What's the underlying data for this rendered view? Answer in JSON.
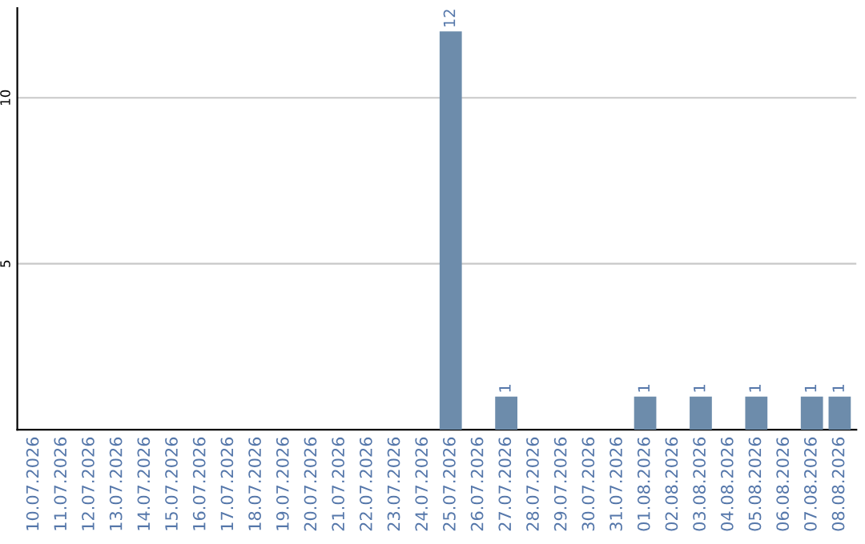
{
  "chart_data": {
    "type": "bar",
    "categories": [
      "10.07.2026",
      "11.07.2026",
      "12.07.2026",
      "13.07.2026",
      "14.07.2026",
      "15.07.2026",
      "16.07.2026",
      "17.07.2026",
      "18.07.2026",
      "19.07.2026",
      "20.07.2026",
      "21.07.2026",
      "22.07.2026",
      "23.07.2026",
      "24.07.2026",
      "25.07.2026",
      "26.07.2026",
      "27.07.2026",
      "28.07.2026",
      "29.07.2026",
      "30.07.2026",
      "31.07.2026",
      "01.08.2026",
      "02.08.2026",
      "03.08.2026",
      "04.08.2026",
      "05.08.2026",
      "06.08.2026",
      "07.08.2026",
      "08.08.2026"
    ],
    "values": [
      0,
      0,
      0,
      0,
      0,
      0,
      0,
      0,
      0,
      0,
      0,
      0,
      0,
      0,
      0,
      12,
      0,
      1,
      0,
      0,
      0,
      0,
      1,
      0,
      1,
      0,
      1,
      0,
      1,
      1
    ],
    "value_labels": [
      null,
      null,
      null,
      null,
      null,
      null,
      null,
      null,
      null,
      null,
      null,
      null,
      null,
      null,
      null,
      "12",
      null,
      "1",
      null,
      null,
      null,
      null,
      "1",
      null,
      "1",
      null,
      "1",
      null,
      "1",
      "1"
    ],
    "color": "#6d8cab",
    "ylim": [
      0,
      12.7
    ],
    "yticks": [
      5,
      10
    ],
    "grid": "y"
  }
}
